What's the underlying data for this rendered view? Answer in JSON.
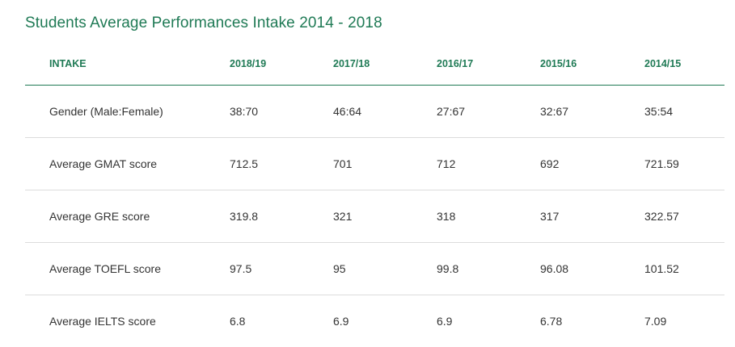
{
  "title": "Students Average Performances Intake 2014 - 2018",
  "table": {
    "headers": [
      "INTAKE",
      "2018/19",
      "2017/18",
      "2016/17",
      "2015/16",
      "2014/15"
    ],
    "rows": [
      [
        "Gender (Male:Female)",
        "38:70",
        "46:64",
        "27:67",
        "32:67",
        "35:54"
      ],
      [
        "Average GMAT score",
        "712.5",
        "701",
        "712",
        "692",
        "721.59"
      ],
      [
        "Average GRE score",
        "319.8",
        "321",
        "318",
        "317",
        "322.57"
      ],
      [
        "Average TOEFL score",
        "97.5",
        "95",
        "99.8",
        "96.08",
        "101.52"
      ],
      [
        "Average IELTS score",
        "6.8",
        "6.9",
        "6.9",
        "6.78",
        "7.09"
      ]
    ]
  },
  "colors": {
    "accent": "#1f7a55",
    "text": "#333333",
    "divider": "#dcdcdc"
  }
}
